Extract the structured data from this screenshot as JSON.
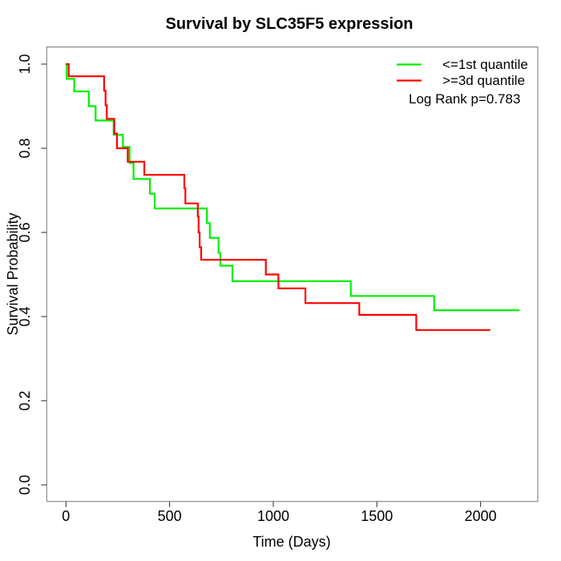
{
  "chart_data": {
    "type": "line",
    "subtype": "kaplan-meier-step",
    "title": "Survival by SLC35F5 expression",
    "xlabel": "Time (Days)",
    "ylabel": "Survival Probability",
    "xticks": [
      0,
      500,
      1000,
      1500,
      2000
    ],
    "ytick_labels": [
      "0.0",
      "0.2",
      "0.4",
      "0.6",
      "0.8",
      "1.0"
    ],
    "xlim": [
      0,
      2270
    ],
    "ylim": [
      -0.04,
      1.04
    ],
    "grid": false,
    "legend_position": "top-right",
    "annotation": "Log Rank p=0.783",
    "colors": {
      "green_series": "#00ee00",
      "red_series": "#ff0000",
      "box": "#8a8a8a",
      "tick": "#4a4a4a",
      "text": "#000000"
    },
    "series": [
      {
        "name": "<=1st quantile",
        "color": "#00ee00",
        "steps": [
          [
            0,
            1.0
          ],
          [
            3,
            0.965
          ],
          [
            40,
            0.935
          ],
          [
            110,
            0.9
          ],
          [
            143,
            0.866
          ],
          [
            230,
            0.832
          ],
          [
            275,
            0.803
          ],
          [
            307,
            0.765
          ],
          [
            326,
            0.727
          ],
          [
            405,
            0.692
          ],
          [
            428,
            0.657
          ],
          [
            680,
            0.622
          ],
          [
            694,
            0.587
          ],
          [
            736,
            0.551
          ],
          [
            745,
            0.521
          ],
          [
            803,
            0.484
          ],
          [
            1374,
            0.449
          ],
          [
            1776,
            0.415
          ]
        ],
        "end_time": 2188
      },
      {
        "name": ">=3d quantile",
        "color": "#ff0000",
        "steps": [
          [
            0,
            1.0
          ],
          [
            13,
            0.971
          ],
          [
            184,
            0.937
          ],
          [
            191,
            0.902
          ],
          [
            197,
            0.87
          ],
          [
            233,
            0.835
          ],
          [
            246,
            0.8
          ],
          [
            298,
            0.768
          ],
          [
            378,
            0.737
          ],
          [
            571,
            0.705
          ],
          [
            576,
            0.669
          ],
          [
            636,
            0.638
          ],
          [
            640,
            0.6
          ],
          [
            645,
            0.565
          ],
          [
            652,
            0.535
          ],
          [
            964,
            0.5
          ],
          [
            1025,
            0.467
          ],
          [
            1155,
            0.432
          ],
          [
            1415,
            0.404
          ],
          [
            1690,
            0.368
          ]
        ],
        "end_time": 2047
      }
    ]
  }
}
